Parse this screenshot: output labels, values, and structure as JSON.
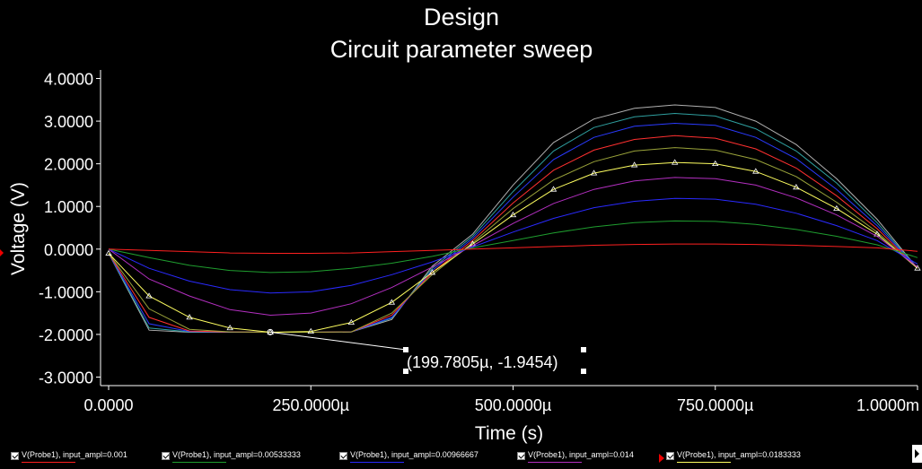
{
  "chart_data": {
    "type": "line",
    "title": "Design",
    "subtitle": "Circuit parameter sweep",
    "xlabel": "Time (s)",
    "ylabel": "Voltage (V)",
    "xlim": [
      -1e-05,
      0.001
    ],
    "ylim": [
      -3.2,
      4.2
    ],
    "x_ticks": [
      0,
      0.00025,
      0.0005,
      0.00075,
      0.001
    ],
    "x_tick_labels": [
      "0.0000",
      "250.0000µ",
      "500.0000µ",
      "750.0000µ",
      "1.0000m"
    ],
    "y_ticks": [
      4,
      3,
      2,
      1,
      0,
      -1,
      -2,
      -3
    ],
    "y_tick_labels": [
      "4.0000",
      "3.0000",
      "2.0000",
      "1.0000",
      "0.0000",
      "-1.0000",
      "-2.0000",
      "-3.0000"
    ],
    "grid": false,
    "legend_position": "bottom",
    "x": [
      0,
      5e-05,
      0.0001,
      0.00015,
      0.0002,
      0.00025,
      0.0003,
      0.00035,
      0.0004,
      0.00045,
      0.0005,
      0.00055,
      0.0006,
      0.00065,
      0.0007,
      0.00075,
      0.0008,
      0.00085,
      0.0009,
      0.00095,
      0.001
    ],
    "series": [
      {
        "name": "V(Probe1),  input_ampl=0.001",
        "color": "#ff2020",
        "markers": false,
        "values": [
          0,
          -0.03,
          -0.06,
          -0.09,
          -0.1,
          -0.1,
          -0.09,
          -0.06,
          -0.03,
          0,
          0.03,
          0.06,
          0.09,
          0.11,
          0.12,
          0.12,
          0.11,
          0.09,
          0.06,
          0.03,
          -0.05
        ]
      },
      {
        "name": "V(Probe1),  input_ampl=0.00533333",
        "color": "#1f9e2f",
        "markers": false,
        "values": [
          0,
          -0.2,
          -0.38,
          -0.5,
          -0.55,
          -0.53,
          -0.45,
          -0.33,
          -0.17,
          0.03,
          0.2,
          0.38,
          0.52,
          0.62,
          0.66,
          0.65,
          0.58,
          0.46,
          0.3,
          0.1,
          -0.2
        ]
      },
      {
        "name": "V(Probe1),  input_ampl=0.00966667",
        "color": "#2a2aff",
        "markers": false,
        "values": [
          0,
          -0.45,
          -0.75,
          -0.95,
          -1.03,
          -1.0,
          -0.85,
          -0.6,
          -0.3,
          0.05,
          0.4,
          0.72,
          0.97,
          1.12,
          1.19,
          1.17,
          1.05,
          0.84,
          0.55,
          0.2,
          -0.35
        ]
      },
      {
        "name": "V(Probe1),  input_ampl=0.014",
        "color": "#b32fc0",
        "markers": false,
        "values": [
          0,
          -0.7,
          -1.1,
          -1.42,
          -1.55,
          -1.5,
          -1.28,
          -0.9,
          -0.42,
          0.08,
          0.6,
          1.07,
          1.4,
          1.6,
          1.68,
          1.65,
          1.5,
          1.2,
          0.8,
          0.3,
          -0.42
        ]
      },
      {
        "name": "V(Probe1),  input_ampl=0.0183333",
        "color": "#ffff60",
        "markers": true,
        "values": [
          -0.1,
          -1.1,
          -1.6,
          -1.85,
          -1.95,
          -1.93,
          -1.72,
          -1.25,
          -0.55,
          0.12,
          0.8,
          1.4,
          1.78,
          1.97,
          2.03,
          2.0,
          1.82,
          1.45,
          0.95,
          0.35,
          -0.45
        ]
      },
      {
        "name": "",
        "color": "#9aa33a",
        "markers": false,
        "values": [
          -0.1,
          -1.4,
          -1.88,
          -1.94,
          -1.95,
          -1.95,
          -1.94,
          -1.5,
          -0.6,
          0.15,
          0.95,
          1.62,
          2.05,
          2.3,
          2.38,
          2.32,
          2.1,
          1.7,
          1.1,
          0.4,
          -0.45
        ]
      },
      {
        "name": "",
        "color": "#ff3030",
        "markers": false,
        "values": [
          -0.1,
          -1.6,
          -1.92,
          -1.94,
          -1.95,
          -1.95,
          -1.94,
          -1.55,
          -0.55,
          0.2,
          1.08,
          1.85,
          2.32,
          2.57,
          2.66,
          2.6,
          2.35,
          1.9,
          1.25,
          0.48,
          -0.45
        ]
      },
      {
        "name": "",
        "color": "#2a3aff",
        "markers": false,
        "values": [
          -0.1,
          -1.75,
          -1.93,
          -1.94,
          -1.95,
          -1.95,
          -1.94,
          -1.6,
          -0.5,
          0.25,
          1.22,
          2.1,
          2.62,
          2.88,
          2.95,
          2.9,
          2.62,
          2.12,
          1.4,
          0.55,
          -0.45
        ]
      },
      {
        "name": "",
        "color": "#2fa0a0",
        "markers": false,
        "values": [
          -0.1,
          -1.85,
          -1.94,
          -1.94,
          -1.95,
          -1.95,
          -1.94,
          -1.62,
          -0.45,
          0.3,
          1.35,
          2.3,
          2.85,
          3.1,
          3.18,
          3.12,
          2.82,
          2.3,
          1.55,
          0.62,
          -0.45
        ]
      },
      {
        "name": "",
        "color": "#b0b0b0",
        "markers": false,
        "values": [
          -0.1,
          -1.9,
          -1.95,
          -1.95,
          -1.95,
          -1.95,
          -1.94,
          -1.65,
          -0.4,
          0.35,
          1.5,
          2.5,
          3.05,
          3.3,
          3.38,
          3.32,
          3.0,
          2.45,
          1.65,
          0.7,
          -0.45
        ]
      }
    ],
    "annotation": {
      "x": 0.0001997805,
      "y": -1.9454,
      "text": "(199.7805µ, -1.9454)"
    }
  }
}
